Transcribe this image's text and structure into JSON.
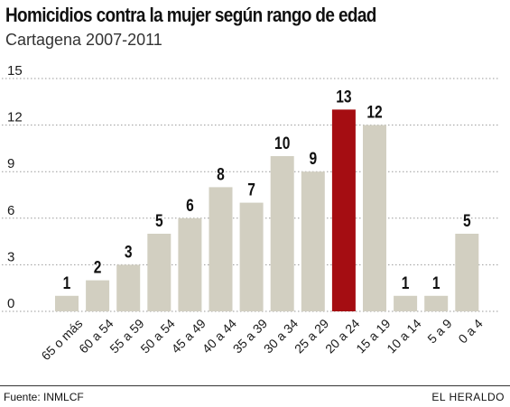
{
  "header": {
    "title": "Homicidios contra la mujer según rango de edad",
    "subtitle": "Cartagena 2007-2011"
  },
  "footer": {
    "source": "Fuente: INMLCF",
    "brand": "EL HERALDO"
  },
  "colors": {
    "bar": "#d2cfc1",
    "highlight": "#a50d12",
    "grid": "#9a9a9a",
    "text": "#1a1a1a"
  },
  "chart_data": {
    "type": "bar",
    "categories": [
      "65 o más",
      "60 a 54",
      "55 a 59",
      "50 a 54",
      "45 a 49",
      "40 a 44",
      "35 a 39",
      "30 a 34",
      "25 a 29",
      "20 a 24",
      "15 a 19",
      "10 a 14",
      "5 a 9",
      "0 a 4"
    ],
    "values": [
      1,
      2,
      3,
      5,
      6,
      8,
      7,
      10,
      9,
      13,
      12,
      1,
      1,
      5
    ],
    "highlight_index": 9,
    "ylim": [
      0,
      15
    ],
    "yticks": [
      0,
      3,
      6,
      9,
      12,
      15
    ],
    "grid": "horizontal dotted",
    "xlabel": "",
    "ylabel": ""
  }
}
